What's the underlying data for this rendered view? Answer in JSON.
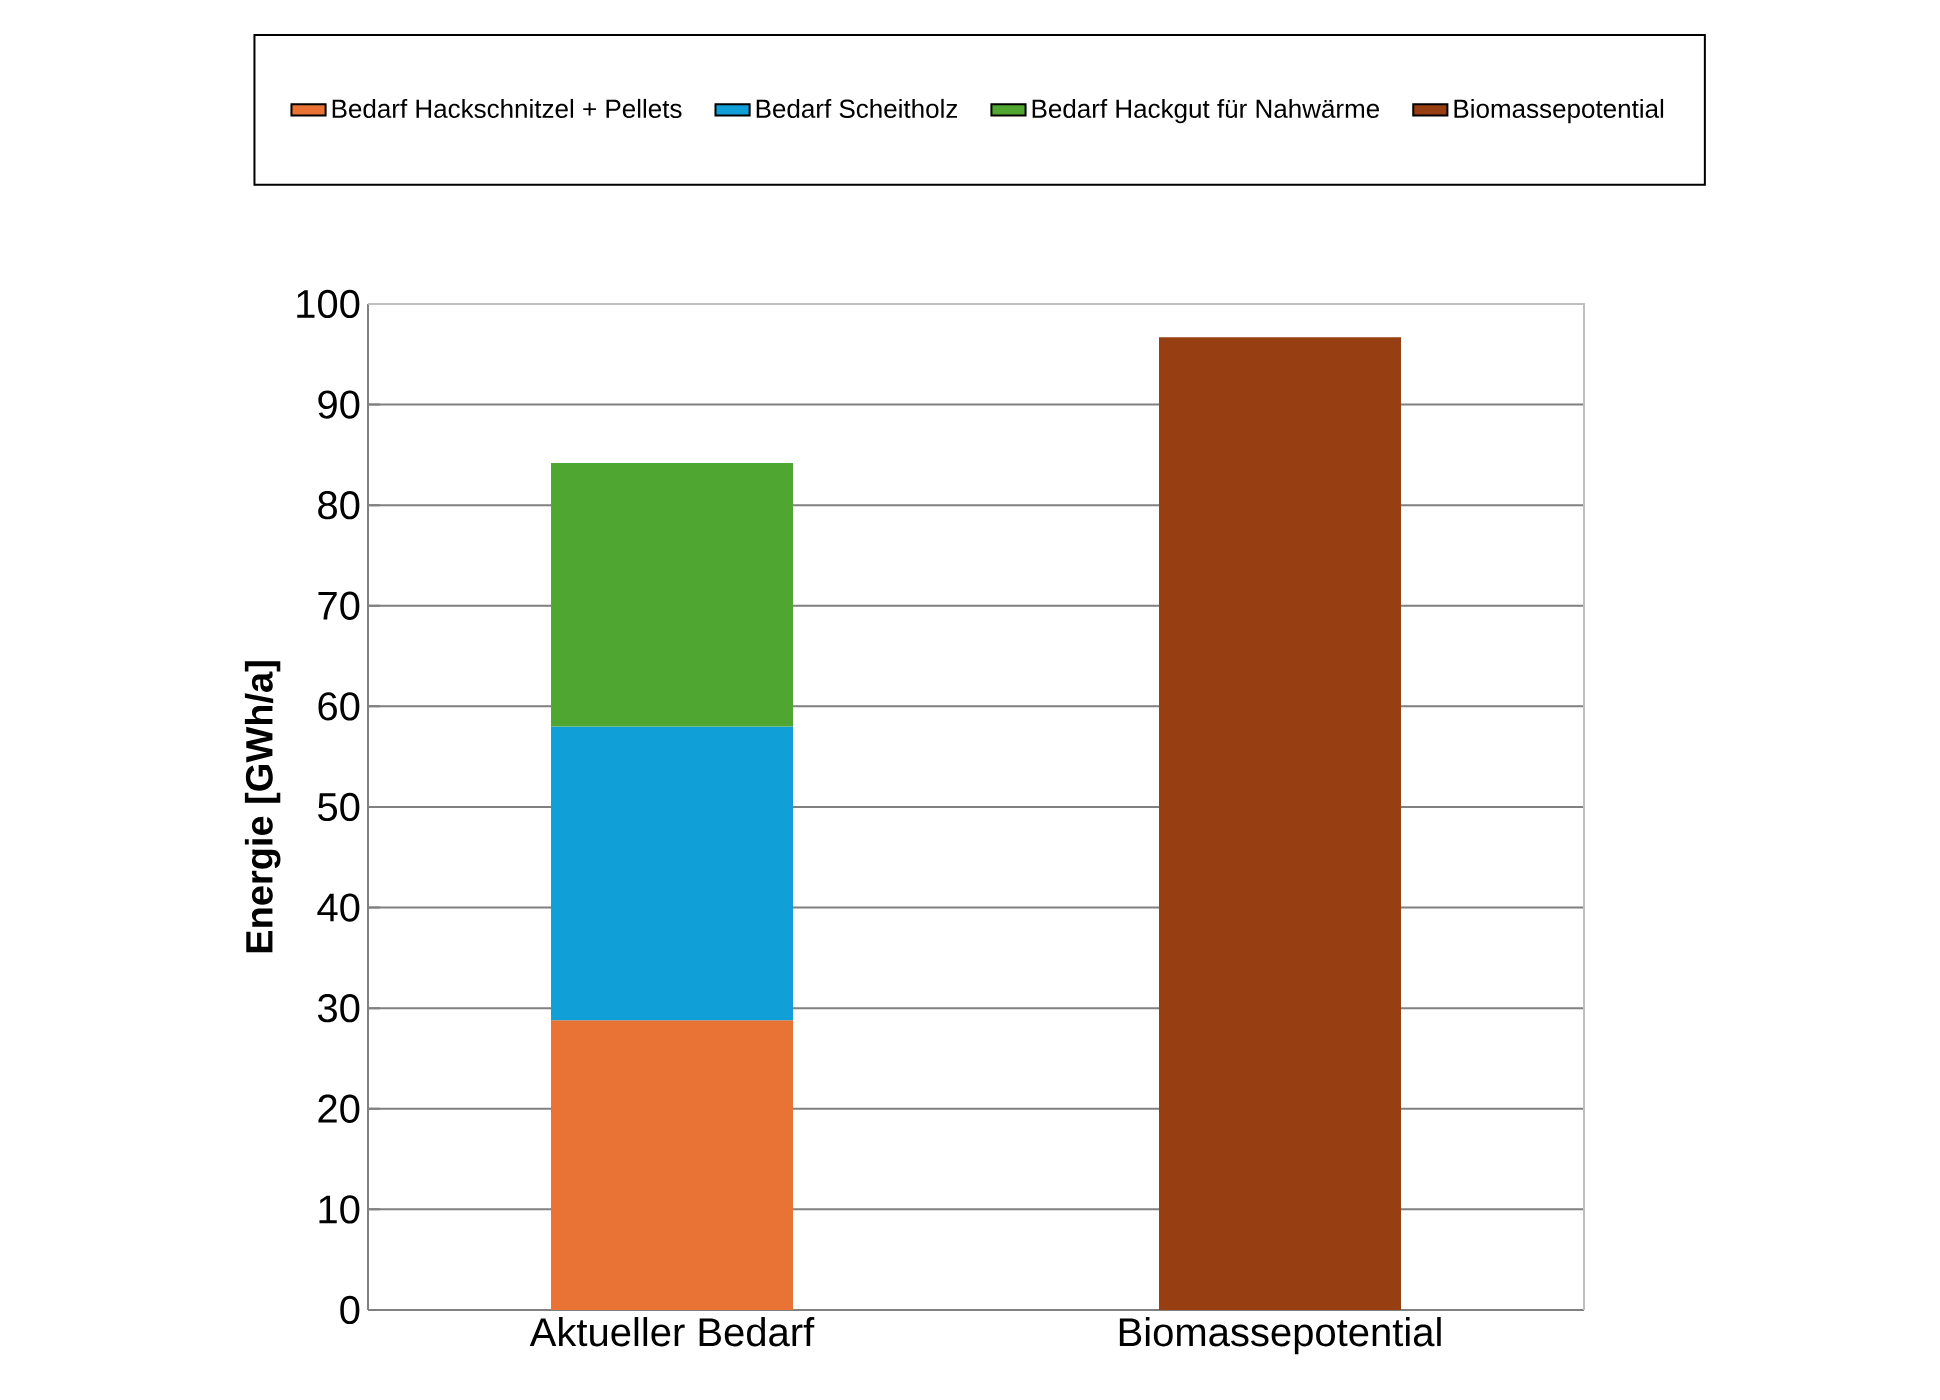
{
  "chart_data": {
    "type": "bar",
    "stacked": true,
    "ylabel": "Energie [GWh/a]",
    "categories": [
      "Aktueller Bedarf",
      "Biomassepotential"
    ],
    "series": [
      {
        "name": "Bedarf Hackschnitzel + Pellets",
        "color": "#e97334",
        "values": [
          28.8,
          null
        ]
      },
      {
        "name": "Bedarf Scheitholz",
        "color": "#109fd7",
        "values": [
          29.2,
          null
        ]
      },
      {
        "name": "Bedarf Hackgut für Nahwärme",
        "color": "#4fa731",
        "values": [
          26.2,
          null
        ]
      },
      {
        "name": "Biomassepotential",
        "color": "#973f12",
        "values": [
          null,
          96.7
        ]
      }
    ],
    "ylim": [
      0,
      100
    ],
    "yticks": [
      0,
      10,
      20,
      30,
      40,
      50,
      60,
      70,
      80,
      90,
      100
    ],
    "grid": "y",
    "legend": "top"
  }
}
